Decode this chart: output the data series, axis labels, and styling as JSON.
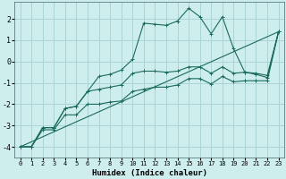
{
  "xlabel": "Humidex (Indice chaleur)",
  "bg_color": "#ceeeed",
  "grid_color": "#aad4d2",
  "line_color": "#1a6b5a",
  "xlim": [
    -0.5,
    23.5
  ],
  "ylim": [
    -4.5,
    2.8
  ],
  "xticks": [
    0,
    1,
    2,
    3,
    4,
    5,
    6,
    7,
    8,
    9,
    10,
    11,
    12,
    13,
    14,
    15,
    16,
    17,
    18,
    19,
    20,
    21,
    22,
    23
  ],
  "yticks": [
    -4,
    -3,
    -2,
    -1,
    0,
    1,
    2
  ],
  "series1_x": [
    0,
    1,
    2,
    3,
    4,
    5,
    6,
    7,
    8,
    9,
    10,
    11,
    12,
    13,
    14,
    15,
    16,
    17,
    18,
    19,
    20,
    21,
    22,
    23
  ],
  "series1_y": [
    -4.0,
    -4.0,
    -3.1,
    -3.1,
    -2.2,
    -2.1,
    -1.4,
    -0.7,
    -0.6,
    -0.4,
    0.1,
    1.8,
    1.75,
    1.7,
    1.9,
    2.5,
    2.1,
    1.3,
    2.1,
    0.6,
    -0.5,
    -0.6,
    -0.75,
    1.4
  ],
  "series2_x": [
    0,
    1,
    2,
    3,
    4,
    5,
    6,
    7,
    8,
    9,
    10,
    11,
    12,
    13,
    14,
    15,
    16,
    17,
    18,
    19,
    20,
    21,
    22,
    23
  ],
  "series2_y": [
    -4.0,
    -4.0,
    -3.1,
    -3.1,
    -2.2,
    -2.1,
    -1.4,
    -1.3,
    -1.2,
    -1.1,
    -0.55,
    -0.45,
    -0.45,
    -0.5,
    -0.45,
    -0.25,
    -0.25,
    -0.55,
    -0.25,
    -0.55,
    -0.5,
    -0.55,
    -0.65,
    1.4
  ],
  "series3_x": [
    0,
    1,
    2,
    3,
    4,
    5,
    6,
    7,
    8,
    9,
    10,
    11,
    12,
    13,
    14,
    15,
    16,
    17,
    18,
    19,
    20,
    21,
    22,
    23
  ],
  "series3_y": [
    -4.0,
    -4.0,
    -3.2,
    -3.2,
    -2.5,
    -2.5,
    -2.0,
    -2.0,
    -1.9,
    -1.85,
    -1.4,
    -1.3,
    -1.2,
    -1.2,
    -1.1,
    -0.8,
    -0.8,
    -1.05,
    -0.7,
    -0.95,
    -0.9,
    -0.9,
    -0.9,
    1.4
  ],
  "series4_x": [
    0,
    23
  ],
  "series4_y": [
    -4.0,
    1.4
  ]
}
